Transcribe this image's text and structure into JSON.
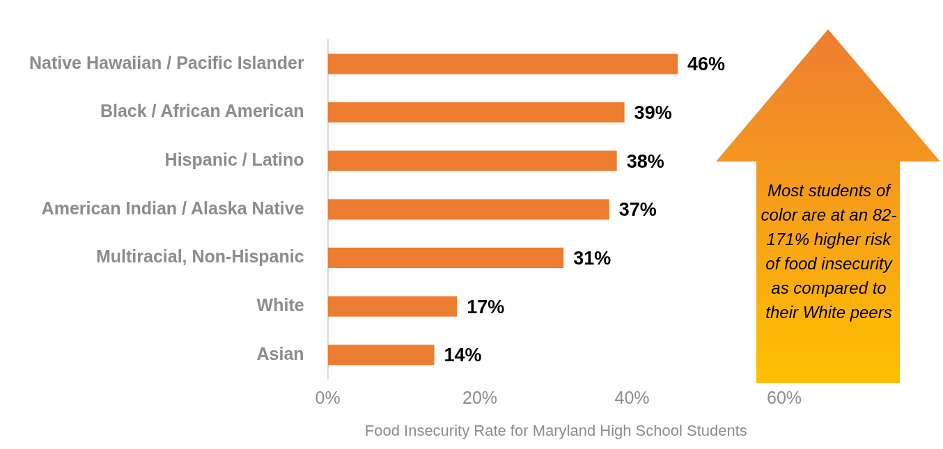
{
  "chart_data": {
    "type": "bar",
    "orientation": "horizontal",
    "xlabel": "Food Insecurity Rate for Maryland High School Students",
    "categories": [
      "Native Hawaiian / Pacific Islander",
      "Black / African American",
      "Hispanic / Latino",
      "American Indian / Alaska Native",
      "Multiracial, Non-Hispanic",
      "White",
      "Asian"
    ],
    "values": [
      46,
      39,
      38,
      37,
      31,
      17,
      14
    ],
    "value_labels": [
      "46%",
      "39%",
      "38%",
      "37%",
      "31%",
      "17%",
      "14%"
    ],
    "color": "#ed7d31",
    "xlim": [
      0,
      60
    ],
    "xticks": [
      {
        "value": 0,
        "label": "0%"
      },
      {
        "value": 20,
        "label": "20%"
      },
      {
        "value": 40,
        "label": "40%"
      },
      {
        "value": 60,
        "label": "60%"
      }
    ],
    "grid": false,
    "annotations": [
      "Most students of color are at an 82-171% higher risk of food insecurity as compared to their White peers"
    ]
  }
}
